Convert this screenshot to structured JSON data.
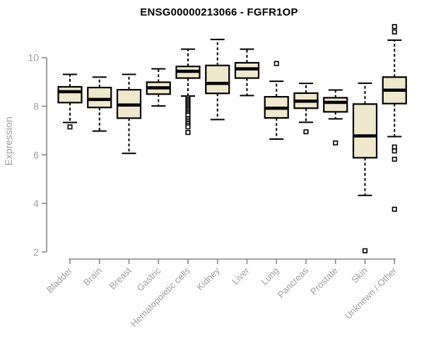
{
  "chart_data": {
    "type": "box",
    "title": "ENSG00000213066 - FGFR1OP",
    "xlabel": "",
    "ylabel": "Expression",
    "ylim": [
      2,
      10
    ],
    "yticks": [
      2,
      4,
      6,
      8,
      10
    ],
    "grid": false,
    "legend": "none",
    "categories": [
      "Bladder",
      "Brain",
      "Breast",
      "Gastric",
      "Hematopoietic cells",
      "Kidney",
      "Liver",
      "Lung",
      "Pancreas",
      "Prostate",
      "Skin",
      "Unknown / Other"
    ],
    "series": [
      {
        "name": "Bladder",
        "low": 7.33,
        "q1": 8.15,
        "median": 8.6,
        "q3": 8.8,
        "high": 9.31,
        "outliers": [
          7.15
        ]
      },
      {
        "name": "Brain",
        "low": 6.98,
        "q1": 7.95,
        "median": 8.28,
        "q3": 8.77,
        "high": 9.2,
        "outliers": []
      },
      {
        "name": "Breast",
        "low": 6.06,
        "q1": 7.51,
        "median": 8.05,
        "q3": 8.68,
        "high": 9.31,
        "outliers": []
      },
      {
        "name": "Gastric",
        "low": 8.01,
        "q1": 8.5,
        "median": 8.76,
        "q3": 8.99,
        "high": 9.54,
        "outliers": []
      },
      {
        "name": "Hematopoietic cells",
        "low": 8.42,
        "q1": 9.16,
        "median": 9.44,
        "q3": 9.64,
        "high": 10.35,
        "outliers": [
          8.35,
          8.29,
          8.23,
          8.17,
          8.11,
          8.05,
          7.99,
          7.93,
          7.87,
          7.81,
          7.75,
          7.69,
          7.63,
          7.5,
          7.43,
          7.36,
          7.29,
          7.22,
          7.15,
          6.92
        ]
      },
      {
        "name": "Kidney",
        "low": 7.45,
        "q1": 8.53,
        "median": 8.94,
        "q3": 9.68,
        "high": 10.75,
        "outliers": []
      },
      {
        "name": "Liver",
        "low": 8.44,
        "q1": 9.16,
        "median": 9.54,
        "q3": 9.79,
        "high": 10.35,
        "outliers": []
      },
      {
        "name": "Lung",
        "low": 6.65,
        "q1": 7.52,
        "median": 7.92,
        "q3": 8.39,
        "high": 9.03,
        "outliers": [
          9.76
        ]
      },
      {
        "name": "Pancreas",
        "low": 7.34,
        "q1": 7.92,
        "median": 8.21,
        "q3": 8.54,
        "high": 8.94,
        "outliers": [
          6.95
        ]
      },
      {
        "name": "Prostate",
        "low": 7.48,
        "q1": 7.77,
        "median": 8.16,
        "q3": 8.35,
        "high": 8.67,
        "outliers": [
          6.49
        ]
      },
      {
        "name": "Skin",
        "low": 4.33,
        "q1": 5.88,
        "median": 6.78,
        "q3": 8.09,
        "high": 8.95,
        "outliers": [
          2.05
        ]
      },
      {
        "name": "Unknown / Other",
        "low": 6.75,
        "q1": 8.11,
        "median": 8.66,
        "q3": 9.2,
        "high": 10.72,
        "outliers": [
          11.28,
          11.06,
          6.32,
          6.16,
          5.82,
          3.76
        ]
      }
    ],
    "colors": {
      "box_fill": "#EEE8CD",
      "box_stroke": "#000000",
      "median": "#000000",
      "whisker": "#000000",
      "axis": "#878787",
      "tick_text": "#9e9e9e",
      "title_text": "#000000",
      "background": "#ffffff"
    }
  }
}
